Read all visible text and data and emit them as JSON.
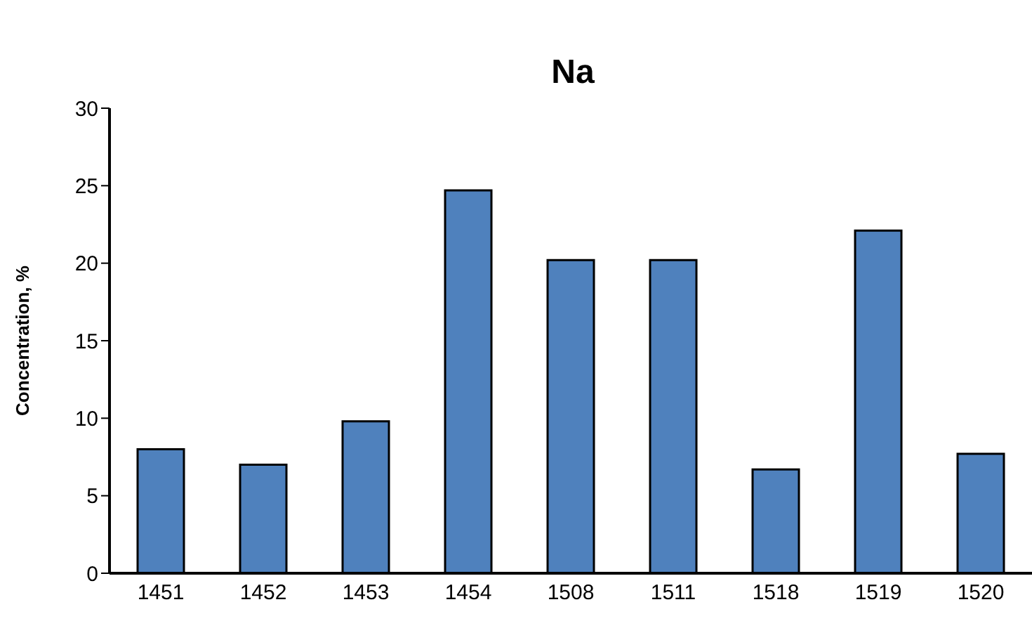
{
  "chart_data": {
    "type": "bar",
    "title": "Na",
    "ylabel": "Concentration, %",
    "categories": [
      "1451",
      "1452",
      "1453",
      "1454",
      "1508",
      "1511",
      "1518",
      "1519",
      "1520"
    ],
    "values": [
      8.0,
      7.0,
      9.8,
      24.7,
      20.2,
      20.2,
      6.7,
      22.1,
      7.7
    ],
    "color": "#4f81bd",
    "ylim": [
      0,
      30
    ],
    "yticks": [
      0,
      5,
      10,
      15,
      20,
      25,
      30
    ],
    "grid": false,
    "legend": false
  }
}
